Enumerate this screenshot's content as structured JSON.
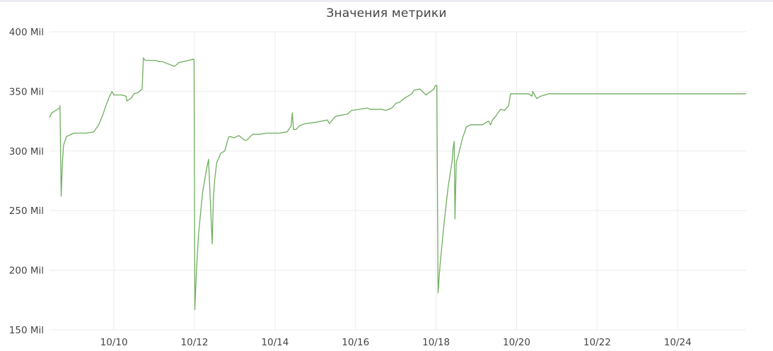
{
  "chart_data": {
    "type": "line",
    "title": "Значения метрики",
    "xlabel": "",
    "ylabel": "",
    "grid": true,
    "ylim": [
      150,
      400
    ],
    "y_ticks": [
      {
        "value": 150,
        "label": "150 Mil"
      },
      {
        "value": 200,
        "label": "200 Mil"
      },
      {
        "value": 250,
        "label": "250 Mil"
      },
      {
        "value": 300,
        "label": "300 Mil"
      },
      {
        "value": 350,
        "label": "350 Mil"
      },
      {
        "value": 400,
        "label": "400 Mil"
      }
    ],
    "xlim": [
      8.4,
      25.7
    ],
    "x_ticks": [
      {
        "value": 10,
        "label": "10/10"
      },
      {
        "value": 12,
        "label": "10/12"
      },
      {
        "value": 14,
        "label": "10/14"
      },
      {
        "value": 16,
        "label": "10/16"
      },
      {
        "value": 18,
        "label": "10/18"
      },
      {
        "value": 20,
        "label": "10/20"
      },
      {
        "value": 22,
        "label": "10/22"
      },
      {
        "value": 24,
        "label": "10/24"
      }
    ],
    "series": [
      {
        "color": "#6fae5f",
        "x": [
          8.4,
          8.46,
          8.55,
          8.65,
          8.66,
          8.69,
          8.72,
          8.75,
          8.82,
          9.0,
          9.3,
          9.5,
          9.62,
          9.72,
          9.8,
          9.88,
          9.95,
          10.0,
          10.2,
          10.3,
          10.32,
          10.42,
          10.5,
          10.6,
          10.7,
          10.73,
          10.78,
          11.05,
          11.1,
          11.2,
          11.5,
          11.58,
          11.6,
          11.98,
          11.99,
          12.01,
          12.05,
          12.1,
          12.2,
          12.3,
          12.35,
          12.44,
          12.47,
          12.5,
          12.55,
          12.65,
          12.75,
          12.85,
          12.9,
          12.98,
          13.1,
          13.25,
          13.3,
          13.38,
          13.45,
          13.6,
          13.8,
          14.1,
          14.3,
          14.4,
          14.43,
          14.46,
          14.52,
          14.6,
          14.75,
          15.0,
          15.3,
          15.35,
          15.5,
          15.8,
          15.9,
          16.3,
          16.35,
          16.55,
          16.65,
          16.75,
          16.9,
          17.0,
          17.1,
          17.2,
          17.3,
          17.4,
          17.45,
          17.6,
          17.75,
          17.95,
          17.98,
          18.02,
          18.05,
          18.1,
          18.2,
          18.3,
          18.4,
          18.42,
          18.45,
          18.47,
          18.5,
          18.55,
          18.65,
          18.75,
          18.85,
          19.0,
          19.15,
          19.3,
          19.35,
          19.4,
          19.5,
          19.6,
          19.7,
          19.8,
          19.85,
          19.9,
          20.0,
          20.3,
          20.38,
          20.4,
          20.5,
          20.6,
          20.8,
          21.5,
          22.5,
          23.5,
          24.5,
          25.7
        ],
        "values": [
          328,
          332,
          334,
          336,
          338,
          262,
          290,
          305,
          312,
          315,
          315,
          316,
          322,
          330,
          338,
          345,
          350,
          347,
          347,
          346,
          342,
          344,
          348,
          349,
          352,
          378,
          376,
          376,
          375,
          375,
          371,
          373,
          374,
          377,
          376,
          167,
          200,
          230,
          265,
          285,
          293,
          222,
          260,
          275,
          290,
          298,
          300,
          312,
          312,
          311,
          313,
          309,
          309,
          312,
          314,
          314,
          315,
          315,
          316,
          321,
          332,
          318,
          318,
          321,
          323,
          324,
          326,
          323,
          329,
          331,
          334,
          336,
          335,
          335,
          335,
          334,
          336,
          340,
          341,
          344,
          346,
          348,
          351,
          352,
          347,
          352,
          355,
          355,
          181,
          205,
          240,
          270,
          292,
          302,
          308,
          243,
          290,
          296,
          310,
          320,
          322,
          322,
          322,
          325,
          322,
          326,
          330,
          335,
          334,
          338,
          348,
          348,
          348,
          348,
          346,
          350,
          344,
          346,
          348,
          348,
          348,
          348,
          348,
          348
        ]
      }
    ]
  }
}
